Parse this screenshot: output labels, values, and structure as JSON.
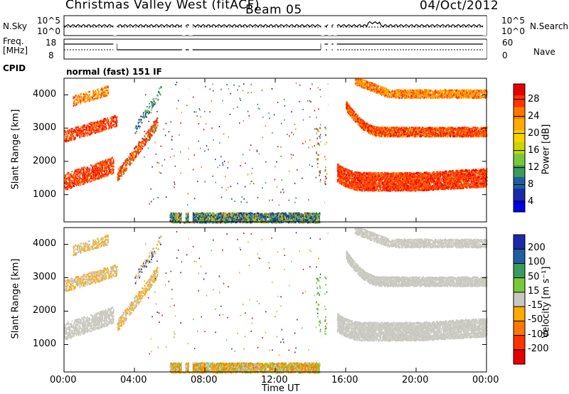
{
  "header": {
    "station": "Christmas Valley West (fitACF)",
    "beam": "Beam 05",
    "date": "04/Oct/2012"
  },
  "panel_labels": {
    "nsky": "N.Sky",
    "freq": "Freq.",
    "freq_unit": "[MHz]",
    "cpid": "CPID",
    "nsearch": "N.Search",
    "nave": "Nave",
    "cpid_value": "normal (fast) 151 IF"
  },
  "noise_axis": {
    "left_top": "10^5",
    "left_bottom": "10^0",
    "right_top": "10^5",
    "right_bottom": "10^0"
  },
  "freq_axis": {
    "left_top": "18",
    "left_bottom": "8",
    "right_top": "60",
    "right_bottom": "0"
  },
  "power_panel": {
    "ylabel": "Slant Range [km]",
    "yticks": [
      "4000",
      "3000",
      "2000",
      "1000"
    ],
    "colorbar_label": "Power [dB]",
    "colorbar_ticks": [
      "28",
      "24",
      "20",
      "16",
      "12",
      "8",
      "4"
    ],
    "colors": [
      "#e60000",
      "#ff3300",
      "#ff7700",
      "#ffaa00",
      "#ffd000",
      "#c8d800",
      "#79c83c",
      "#3a9b5a",
      "#1f5fa0",
      "#1a2aa8",
      "#0000e6"
    ]
  },
  "velocity_panel": {
    "ylabel": "Slant Range [km]",
    "yticks": [
      "4000",
      "3000",
      "2000",
      "1000"
    ],
    "colorbar_label": "Velocity [m s⁻¹]",
    "colorbar_ticks": [
      "200",
      "100",
      "50",
      "15",
      "-15",
      "-50",
      "-100",
      "-200"
    ],
    "colors": [
      "#1a2aa8",
      "#1f5fa0",
      "#3a9b5a",
      "#79c83c",
      "#c8c8c0",
      "#ffaa00",
      "#ff7700",
      "#ff3300",
      "#e60000"
    ]
  },
  "xaxis": {
    "label": "Time UT",
    "ticks": [
      "00:00",
      "04:00",
      "08:00",
      "12:00",
      "16:00",
      "20:00",
      "00:00"
    ]
  },
  "chart_data": {
    "type": "heatmap",
    "title": "Christmas Valley West (fitACF)",
    "xlabel": "Time UT",
    "ylabel": "Slant Range [km]",
    "xlim_hours": [
      0,
      24
    ],
    "ylim_km": [
      180,
      4500
    ],
    "power_range_db": [
      0,
      30
    ],
    "velocity_range_ms": [
      -250,
      250
    ],
    "features": [
      {
        "name": "lower band",
        "time_hours": [
          0,
          2.8
        ],
        "range_km": [
          1250,
          2100
        ],
        "power_db": 28,
        "velocity_ms": -10
      },
      {
        "name": "lower band",
        "time_hours": [
          3.0,
          5.3
        ],
        "range_km": [
          1400,
          3200
        ],
        "power_db": 22,
        "velocity_ms": -30
      },
      {
        "name": "upper band",
        "time_hours": [
          0,
          3.0
        ],
        "range_km": [
          2600,
          4200
        ],
        "power_db": 24,
        "velocity_ms": -40
      },
      {
        "name": "ground scatter",
        "time_hours": [
          6.0,
          14.5
        ],
        "range_km": [
          200,
          600
        ],
        "power_db": 6,
        "velocity_ms": -30
      },
      {
        "name": "evening lower band",
        "time_hours": [
          15.5,
          24
        ],
        "range_km": [
          1250,
          2400
        ],
        "power_db": 26,
        "velocity_ms": -5
      },
      {
        "name": "evening upper band",
        "time_hours": [
          16.0,
          24
        ],
        "range_km": [
          2800,
          4300
        ],
        "power_db": 22,
        "velocity_ms": -10
      }
    ]
  }
}
